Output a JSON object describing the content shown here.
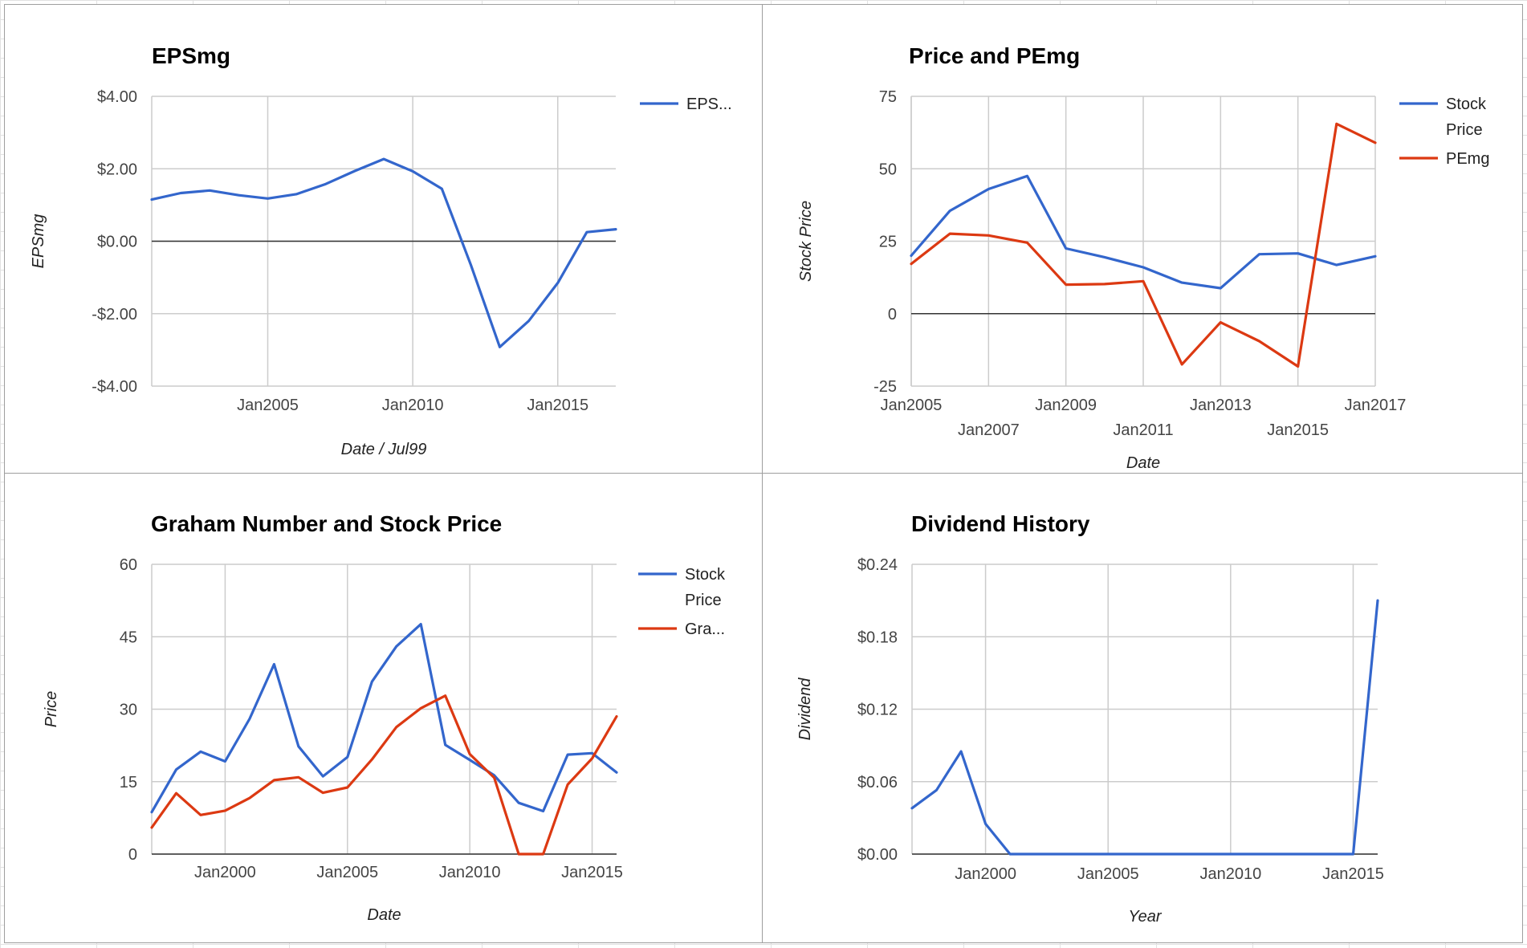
{
  "colors": {
    "blue": "#3366cc",
    "red": "#dc3912",
    "grid": "#cccccc",
    "zero": "#333333"
  },
  "chart_data": [
    {
      "type": "line",
      "title": "EPSmg",
      "xlabel": "Date / Jul99",
      "ylabel": "EPSmg",
      "xlim": [
        2001,
        2017
      ],
      "ylim": [
        -4,
        4
      ],
      "x_ticks": [
        2005,
        2010,
        2015
      ],
      "x_tick_labels": [
        "Jan2005",
        "Jan2010",
        "Jan2015"
      ],
      "y_ticks": [
        -4,
        -2,
        0,
        2,
        4
      ],
      "y_tick_labels": [
        "-$4.00",
        "-$2.00",
        "$0.00",
        "$2.00",
        "$4.00"
      ],
      "grid": true,
      "legend": "right",
      "series": [
        {
          "name": "EPS...",
          "color": "#3366cc",
          "x": [
            2001,
            2002,
            2003,
            2004,
            2005,
            2006,
            2007,
            2008,
            2009,
            2010,
            2011,
            2012,
            2013,
            2014,
            2015,
            2016,
            2017
          ],
          "values": [
            1.15,
            1.33,
            1.4,
            1.27,
            1.18,
            1.3,
            1.58,
            1.94,
            2.27,
            1.93,
            1.45,
            -0.65,
            -2.92,
            -2.2,
            -1.15,
            0.25,
            0.33
          ]
        }
      ]
    },
    {
      "type": "line",
      "title": "Price and PEmg",
      "xlabel": "Date",
      "ylabel": "Stock Price",
      "xlim": [
        2005,
        2017
      ],
      "ylim": [
        -25,
        75
      ],
      "x_ticks": [
        2005,
        2007,
        2009,
        2011,
        2013,
        2015,
        2017
      ],
      "x_tick_labels": [
        "Jan2005",
        "Jan2007",
        "Jan2009",
        "Jan2011",
        "Jan2013",
        "Jan2015",
        "Jan2017"
      ],
      "y_ticks": [
        -25,
        0,
        25,
        50,
        75
      ],
      "y_tick_labels": [
        "-25",
        "0",
        "25",
        "50",
        "75"
      ],
      "grid": true,
      "legend": "right",
      "series": [
        {
          "name": "Stock Price",
          "color": "#3366cc",
          "x": [
            2005,
            2006,
            2007,
            2008,
            2009,
            2010,
            2011,
            2012,
            2013,
            2014,
            2015,
            2016,
            2017
          ],
          "values": [
            20,
            35.5,
            43,
            47.5,
            22.5,
            19.5,
            16,
            10.7,
            8.8,
            20.5,
            20.8,
            16.8,
            19.8
          ]
        },
        {
          "name": "PEmg",
          "color": "#dc3912",
          "x": [
            2005,
            2006,
            2007,
            2008,
            2009,
            2010,
            2011,
            2012,
            2013,
            2014,
            2015,
            2016,
            2017
          ],
          "values": [
            17.2,
            27.6,
            27,
            24.5,
            10,
            10.2,
            11.2,
            -17.5,
            -3,
            -9.5,
            -18.2,
            65.5,
            59
          ]
        }
      ]
    },
    {
      "type": "line",
      "title": "Graham Number and Stock Price",
      "xlabel": "Date",
      "ylabel": "Price",
      "xlim": [
        1997,
        2016
      ],
      "ylim": [
        0,
        60
      ],
      "x_ticks": [
        2000,
        2005,
        2010,
        2015
      ],
      "x_tick_labels": [
        "Jan2000",
        "Jan2005",
        "Jan2010",
        "Jan2015"
      ],
      "y_ticks": [
        0,
        15,
        30,
        45,
        60
      ],
      "y_tick_labels": [
        "0",
        "15",
        "30",
        "45",
        "60"
      ],
      "grid": true,
      "legend": "right",
      "series": [
        {
          "name": "Stock Price",
          "color": "#3366cc",
          "x": [
            1997,
            1998,
            1999,
            2000,
            2001,
            2002,
            2003,
            2004,
            2005,
            2006,
            2007,
            2008,
            2009,
            2010,
            2011,
            2012,
            2013,
            2014,
            2015,
            2016
          ],
          "values": [
            8.7,
            17.5,
            21.2,
            19.2,
            28,
            39.3,
            22.3,
            16.1,
            20.1,
            35.7,
            43,
            47.6,
            22.6,
            19.5,
            16.3,
            10.6,
            8.9,
            20.6,
            20.9,
            16.9
          ]
        },
        {
          "name": "Gra...",
          "color": "#dc3912",
          "x": [
            1997,
            1998,
            1999,
            2000,
            2001,
            2002,
            2003,
            2004,
            2005,
            2006,
            2007,
            2008,
            2009,
            2010,
            2011,
            2012,
            2013,
            2014,
            2015,
            2016
          ],
          "values": [
            5.5,
            12.6,
            8.1,
            9,
            11.6,
            15.3,
            15.9,
            12.7,
            13.8,
            19.6,
            26.3,
            30.2,
            32.8,
            20.7,
            15.8,
            0,
            0,
            14.4,
            19.8,
            28.5
          ]
        }
      ]
    },
    {
      "type": "line",
      "title": "Dividend History",
      "xlabel": "Year",
      "ylabel": "Dividend",
      "xlim": [
        1997,
        2016
      ],
      "ylim": [
        0,
        0.24
      ],
      "x_ticks": [
        2000,
        2005,
        2010,
        2015
      ],
      "x_tick_labels": [
        "Jan2000",
        "Jan2005",
        "Jan2010",
        "Jan2015"
      ],
      "y_ticks": [
        0,
        0.06,
        0.12,
        0.18,
        0.24
      ],
      "y_tick_labels": [
        "$0.00",
        "$0.06",
        "$0.12",
        "$0.18",
        "$0.24"
      ],
      "grid": true,
      "legend": "none",
      "series": [
        {
          "name": "",
          "color": "#3366cc",
          "x": [
            1997,
            1998,
            1999,
            2000,
            2001,
            2002,
            2003,
            2004,
            2005,
            2006,
            2007,
            2008,
            2009,
            2010,
            2011,
            2012,
            2013,
            2014,
            2015,
            2016
          ],
          "values": [
            0.038,
            0.053,
            0.085,
            0.025,
            0,
            0,
            0,
            0,
            0,
            0,
            0,
            0,
            0,
            0,
            0,
            0,
            0,
            0,
            0,
            0.21
          ]
        }
      ]
    }
  ]
}
